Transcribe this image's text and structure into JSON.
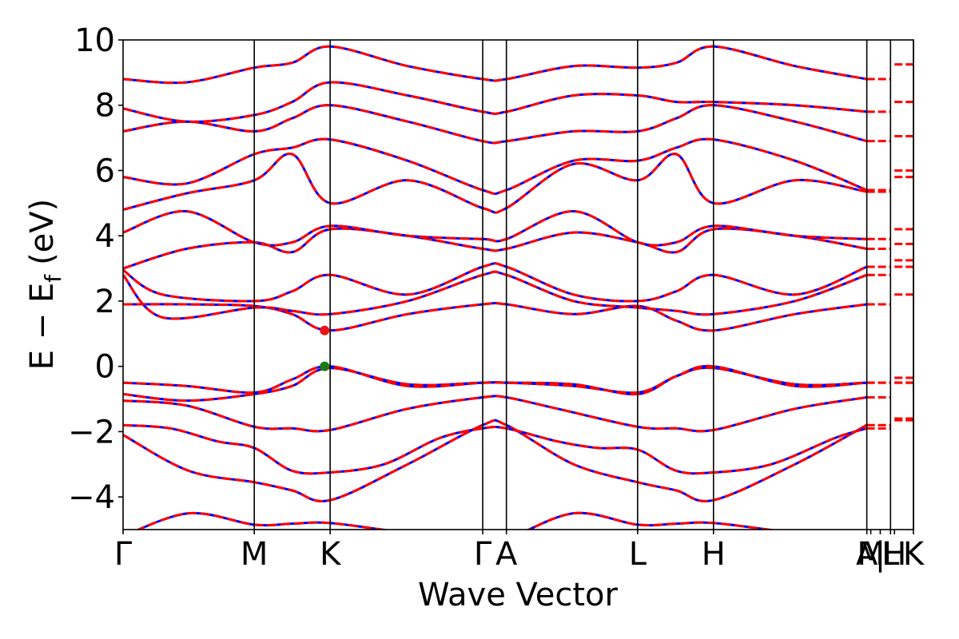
{
  "chart_data": {
    "type": "line",
    "title": "",
    "xlabel": "Wave Vector",
    "ylabel": "E − E",
    "ylabel_subscript": "f",
    "ylabel_unit": "(eV)",
    "ylim": [
      -5,
      10
    ],
    "yticks": [
      -4,
      -2,
      0,
      2,
      4,
      6,
      8,
      10
    ],
    "ytick_labels": [
      "−4",
      "−2",
      "0",
      "2",
      "4",
      "6",
      "8",
      "10"
    ],
    "xlim": [
      0,
      1
    ],
    "kpoints": [
      {
        "label": "Γ",
        "x": 0.0
      },
      {
        "label": "M",
        "x": 0.166
      },
      {
        "label": "K",
        "x": 0.262
      },
      {
        "label": "Γ",
        "x": 0.455
      },
      {
        "label": "A",
        "x": 0.485
      },
      {
        "label": "L",
        "x": 0.651
      },
      {
        "label": "H",
        "x": 0.747
      },
      {
        "label": "A",
        "x": 0.941
      },
      {
        "label": "M",
        "x": 0.946
      },
      {
        "label": "|",
        "x": 0.958
      },
      {
        "label": "L",
        "x": 0.971
      },
      {
        "label": "H",
        "x": 0.976
      },
      {
        "label": "K",
        "x": 1.0
      }
    ],
    "vlines": [
      0.166,
      0.262,
      0.455,
      0.485,
      0.651,
      0.747,
      0.941,
      0.971,
      1.0
    ],
    "series_colors": {
      "spin_up": "#0000ff",
      "spin_down": "#ff0000"
    },
    "markers": [
      {
        "name": "CBM",
        "x": 0.255,
        "y": 1.1,
        "color": "#e8141c"
      },
      {
        "name": "VBM",
        "x": 0.255,
        "y": 0.0,
        "color": "#1a7a1a"
      }
    ],
    "bands": [
      {
        "x": [
          0,
          0.083,
          0.166,
          0.214,
          0.262,
          0.36,
          0.455,
          0.485,
          0.57,
          0.651,
          0.7,
          0.747,
          0.85,
          0.941
        ],
        "y": [
          -5.2,
          -4.5,
          -4.85,
          -4.82,
          -4.8,
          -5.1,
          -5.3,
          -5.3,
          -4.5,
          -4.85,
          -4.82,
          -4.8,
          -5.1,
          -5.3
        ]
      },
      {
        "x": [
          0,
          0.083,
          0.166,
          0.214,
          0.262,
          0.36,
          0.455,
          0.485,
          0.57,
          0.651,
          0.7,
          0.747,
          0.85,
          0.941
        ],
        "y": [
          -2.1,
          -3.2,
          -3.55,
          -3.8,
          -4.1,
          -3.0,
          -1.8,
          -1.8,
          -3.0,
          -3.55,
          -3.8,
          -4.1,
          -3.0,
          -1.8
        ]
      },
      {
        "x": [
          0,
          0.06,
          0.12,
          0.166,
          0.214,
          0.262,
          0.33,
          0.4,
          0.455,
          0.485,
          0.55,
          0.6,
          0.651,
          0.7,
          0.747,
          0.82,
          0.9,
          0.941
        ],
        "y": [
          -1.8,
          -1.9,
          -2.3,
          -2.5,
          -3.2,
          -3.25,
          -3.0,
          -2.2,
          -1.9,
          -1.9,
          -2.3,
          -2.5,
          -2.55,
          -3.2,
          -3.25,
          -3.0,
          -2.2,
          -1.9
        ]
      },
      {
        "x": [
          0,
          0.08,
          0.166,
          0.214,
          0.262,
          0.36,
          0.455,
          0.485,
          0.55,
          0.651,
          0.7,
          0.747,
          0.85,
          0.941
        ],
        "y": [
          -1.05,
          -1.2,
          -1.85,
          -1.9,
          -1.95,
          -1.3,
          -0.95,
          -0.95,
          -1.3,
          -1.85,
          -1.9,
          -1.95,
          -1.3,
          -0.95
        ]
      },
      {
        "x": [
          0,
          0.08,
          0.166,
          0.214,
          0.262,
          0.36,
          0.455,
          0.485,
          0.57,
          0.651,
          0.7,
          0.747,
          0.85,
          0.941
        ],
        "y": [
          -0.85,
          -1.05,
          -0.85,
          -0.6,
          -0.05,
          -0.55,
          -0.5,
          -0.5,
          -0.55,
          -0.85,
          -0.3,
          -0.05,
          -0.55,
          -0.5
        ]
      },
      {
        "x": [
          0,
          0.08,
          0.166,
          0.214,
          0.262,
          0.36,
          0.455,
          0.485,
          0.57,
          0.651,
          0.7,
          0.747,
          0.85,
          0.941
        ],
        "y": [
          -0.5,
          -0.6,
          -0.8,
          -0.4,
          0.0,
          -0.6,
          -0.5,
          -0.5,
          -0.6,
          -0.8,
          -0.3,
          0.0,
          -0.6,
          -0.5
        ]
      },
      {
        "x": [
          0,
          0.08,
          0.166,
          0.214,
          0.262,
          0.36,
          0.455,
          0.485,
          0.57,
          0.651,
          0.7,
          0.747,
          0.85,
          0.941
        ],
        "y": [
          1.9,
          1.9,
          1.85,
          1.6,
          1.1,
          1.6,
          1.9,
          1.9,
          1.6,
          1.85,
          1.4,
          1.1,
          1.6,
          1.9
        ]
      },
      {
        "x": [
          0,
          0.05,
          0.166,
          0.214,
          0.262,
          0.36,
          0.455,
          0.485,
          0.57,
          0.651,
          0.7,
          0.747,
          0.85,
          0.941
        ],
        "y": [
          2.8,
          1.5,
          1.8,
          1.7,
          1.6,
          2.0,
          2.8,
          2.8,
          2.0,
          1.8,
          1.7,
          1.6,
          2.0,
          2.8
        ]
      },
      {
        "x": [
          0,
          0.05,
          0.166,
          0.214,
          0.262,
          0.36,
          0.455,
          0.485,
          0.57,
          0.651,
          0.7,
          0.747,
          0.85,
          0.941
        ],
        "y": [
          2.95,
          2.2,
          2.0,
          2.3,
          2.8,
          2.2,
          3.05,
          3.05,
          2.2,
          2.0,
          2.3,
          2.8,
          2.2,
          3.05
        ]
      },
      {
        "x": [
          0,
          0.08,
          0.166,
          0.214,
          0.262,
          0.36,
          0.455,
          0.485,
          0.57,
          0.651,
          0.7,
          0.747,
          0.85,
          0.941
        ],
        "y": [
          3.0,
          3.6,
          3.8,
          3.5,
          4.2,
          4.0,
          3.6,
          3.6,
          4.1,
          3.8,
          3.5,
          4.2,
          4.0,
          3.6
        ]
      },
      {
        "x": [
          0,
          0.08,
          0.166,
          0.214,
          0.262,
          0.36,
          0.455,
          0.485,
          0.57,
          0.651,
          0.7,
          0.747,
          0.85,
          0.941
        ],
        "y": [
          4.1,
          4.75,
          3.8,
          3.8,
          4.3,
          4.0,
          3.9,
          3.9,
          4.75,
          3.8,
          3.8,
          4.3,
          4.0,
          3.9
        ]
      },
      {
        "x": [
          0,
          0.08,
          0.166,
          0.214,
          0.262,
          0.36,
          0.455,
          0.485,
          0.57,
          0.651,
          0.7,
          0.747,
          0.85,
          0.941
        ],
        "y": [
          4.8,
          5.3,
          5.7,
          6.5,
          5.0,
          5.7,
          4.85,
          4.85,
          6.2,
          5.7,
          6.5,
          5.0,
          5.7,
          5.35
        ]
      },
      {
        "x": [
          0,
          0.08,
          0.166,
          0.214,
          0.262,
          0.36,
          0.455,
          0.485,
          0.57,
          0.651,
          0.7,
          0.747,
          0.85,
          0.941
        ],
        "y": [
          5.8,
          5.6,
          6.5,
          6.7,
          6.95,
          6.3,
          5.4,
          5.4,
          6.3,
          6.3,
          6.7,
          6.95,
          6.3,
          5.4
        ]
      },
      {
        "x": [
          0,
          0.08,
          0.166,
          0.214,
          0.262,
          0.36,
          0.455,
          0.485,
          0.57,
          0.651,
          0.7,
          0.747,
          0.85,
          0.941
        ],
        "y": [
          7.2,
          7.5,
          7.2,
          7.6,
          8.0,
          7.5,
          6.9,
          6.9,
          7.2,
          7.2,
          7.6,
          8.0,
          7.5,
          6.9
        ]
      },
      {
        "x": [
          0,
          0.08,
          0.166,
          0.214,
          0.262,
          0.36,
          0.455,
          0.485,
          0.57,
          0.651,
          0.7,
          0.747,
          0.85,
          0.941
        ],
        "y": [
          7.9,
          7.5,
          7.7,
          8.1,
          8.7,
          8.3,
          7.8,
          7.8,
          8.3,
          8.3,
          8.1,
          8.1,
          8.0,
          7.8
        ]
      },
      {
        "x": [
          0,
          0.08,
          0.166,
          0.214,
          0.262,
          0.36,
          0.455,
          0.485,
          0.57,
          0.651,
          0.7,
          0.747,
          0.85,
          0.941
        ],
        "y": [
          8.8,
          8.7,
          9.15,
          9.3,
          9.8,
          9.2,
          8.8,
          8.8,
          9.2,
          9.15,
          9.3,
          9.8,
          9.2,
          8.8
        ]
      }
    ]
  }
}
